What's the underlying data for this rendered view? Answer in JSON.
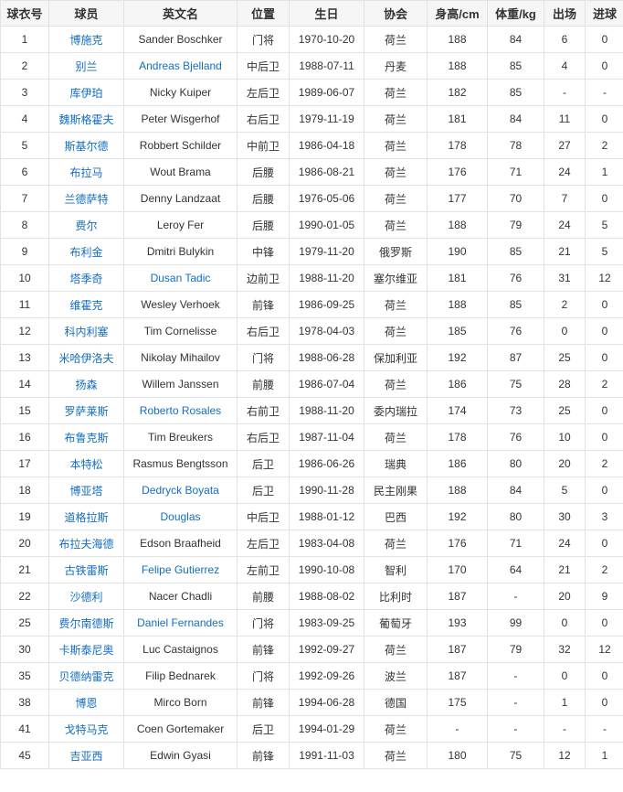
{
  "colors": {
    "link": "#136ec2",
    "text": "#333333",
    "header_bg": "#f6f6f6",
    "border": "#e2e2e2"
  },
  "headers": [
    "球衣号",
    "球员",
    "英文名",
    "位置",
    "生日",
    "协会",
    "身高/cm",
    "体重/kg",
    "出场",
    "进球"
  ],
  "rows": [
    {
      "no": "1",
      "cn": "博施克",
      "en": "Sander Boschker",
      "en_link": false,
      "pos": "门将",
      "birth": "1970-10-20",
      "assoc": "荷兰",
      "height": "188",
      "weight": "84",
      "apps": "6",
      "goals": "0"
    },
    {
      "no": "2",
      "cn": "别兰",
      "en": "Andreas Bjelland",
      "en_link": true,
      "pos": "中后卫",
      "birth": "1988-07-11",
      "assoc": "丹麦",
      "height": "188",
      "weight": "85",
      "apps": "4",
      "goals": "0"
    },
    {
      "no": "3",
      "cn": "库伊珀",
      "en": "Nicky Kuiper",
      "en_link": false,
      "pos": "左后卫",
      "birth": "1989-06-07",
      "assoc": "荷兰",
      "height": "182",
      "weight": "85",
      "apps": "-",
      "goals": "-"
    },
    {
      "no": "4",
      "cn": "魏斯格霍夫",
      "en": "Peter Wisgerhof",
      "en_link": false,
      "pos": "右后卫",
      "birth": "1979-11-19",
      "assoc": "荷兰",
      "height": "181",
      "weight": "84",
      "apps": "11",
      "goals": "0"
    },
    {
      "no": "5",
      "cn": "斯基尔德",
      "en": "Robbert Schilder",
      "en_link": false,
      "pos": "中前卫",
      "birth": "1986-04-18",
      "assoc": "荷兰",
      "height": "178",
      "weight": "78",
      "apps": "27",
      "goals": "2"
    },
    {
      "no": "6",
      "cn": "布拉马",
      "en": "Wout Brama",
      "en_link": false,
      "pos": "后腰",
      "birth": "1986-08-21",
      "assoc": "荷兰",
      "height": "176",
      "weight": "71",
      "apps": "24",
      "goals": "1"
    },
    {
      "no": "7",
      "cn": "兰德萨特",
      "en": "Denny Landzaat",
      "en_link": false,
      "pos": "后腰",
      "birth": "1976-05-06",
      "assoc": "荷兰",
      "height": "177",
      "weight": "70",
      "apps": "7",
      "goals": "0"
    },
    {
      "no": "8",
      "cn": "费尔",
      "en": "Leroy Fer",
      "en_link": false,
      "pos": "后腰",
      "birth": "1990-01-05",
      "assoc": "荷兰",
      "height": "188",
      "weight": "79",
      "apps": "24",
      "goals": "5"
    },
    {
      "no": "9",
      "cn": "布利金",
      "en": "Dmitri Bulykin",
      "en_link": false,
      "pos": "中锋",
      "birth": "1979-11-20",
      "assoc": "俄罗斯",
      "height": "190",
      "weight": "85",
      "apps": "21",
      "goals": "5"
    },
    {
      "no": "10",
      "cn": "塔季奇",
      "en": "Dusan Tadic",
      "en_link": true,
      "pos": "边前卫",
      "birth": "1988-11-20",
      "assoc": "塞尔维亚",
      "height": "181",
      "weight": "76",
      "apps": "31",
      "goals": "12"
    },
    {
      "no": "11",
      "cn": "维霍克",
      "en": "Wesley Verhoek",
      "en_link": false,
      "pos": "前锋",
      "birth": "1986-09-25",
      "assoc": "荷兰",
      "height": "188",
      "weight": "85",
      "apps": "2",
      "goals": "0"
    },
    {
      "no": "12",
      "cn": "科内利塞",
      "en": "Tim Cornelisse",
      "en_link": false,
      "pos": "右后卫",
      "birth": "1978-04-03",
      "assoc": "荷兰",
      "height": "185",
      "weight": "76",
      "apps": "0",
      "goals": "0"
    },
    {
      "no": "13",
      "cn": "米哈伊洛夫",
      "en": "Nikolay Mihailov",
      "en_link": false,
      "pos": "门将",
      "birth": "1988-06-28",
      "assoc": "保加利亚",
      "height": "192",
      "weight": "87",
      "apps": "25",
      "goals": "0"
    },
    {
      "no": "14",
      "cn": "扬森",
      "en": "Willem Janssen",
      "en_link": false,
      "pos": "前腰",
      "birth": "1986-07-04",
      "assoc": "荷兰",
      "height": "186",
      "weight": "75",
      "apps": "28",
      "goals": "2"
    },
    {
      "no": "15",
      "cn": "罗萨莱斯",
      "en": "Roberto Rosales",
      "en_link": true,
      "pos": "右前卫",
      "birth": "1988-11-20",
      "assoc": "委内瑞拉",
      "height": "174",
      "weight": "73",
      "apps": "25",
      "goals": "0"
    },
    {
      "no": "16",
      "cn": "布鲁克斯",
      "en": "Tim Breukers",
      "en_link": false,
      "pos": "右后卫",
      "birth": "1987-11-04",
      "assoc": "荷兰",
      "height": "178",
      "weight": "76",
      "apps": "10",
      "goals": "0"
    },
    {
      "no": "17",
      "cn": "本特松",
      "en": "Rasmus Bengtsson",
      "en_link": false,
      "pos": "后卫",
      "birth": "1986-06-26",
      "assoc": "瑞典",
      "height": "186",
      "weight": "80",
      "apps": "20",
      "goals": "2"
    },
    {
      "no": "18",
      "cn": "博亚塔",
      "en": "Dedryck Boyata",
      "en_link": true,
      "pos": "后卫",
      "birth": "1990-11-28",
      "assoc": "民主刚果",
      "height": "188",
      "weight": "84",
      "apps": "5",
      "goals": "0"
    },
    {
      "no": "19",
      "cn": "道格拉斯",
      "en": "Douglas",
      "en_link": true,
      "pos": "中后卫",
      "birth": "1988-01-12",
      "assoc": "巴西",
      "height": "192",
      "weight": "80",
      "apps": "30",
      "goals": "3"
    },
    {
      "no": "20",
      "cn": "布拉夫海德",
      "en": "Edson Braafheid",
      "en_link": false,
      "pos": "左后卫",
      "birth": "1983-04-08",
      "assoc": "荷兰",
      "height": "176",
      "weight": "71",
      "apps": "24",
      "goals": "0"
    },
    {
      "no": "21",
      "cn": "古铁雷斯",
      "en": "Felipe Gutierrez",
      "en_link": true,
      "pos": "左前卫",
      "birth": "1990-10-08",
      "assoc": "智利",
      "height": "170",
      "weight": "64",
      "apps": "21",
      "goals": "2"
    },
    {
      "no": "22",
      "cn": "沙德利",
      "en": "Nacer Chadli",
      "en_link": false,
      "pos": "前腰",
      "birth": "1988-08-02",
      "assoc": "比利时",
      "height": "187",
      "weight": "-",
      "apps": "20",
      "goals": "9"
    },
    {
      "no": "25",
      "cn": "费尔南德斯",
      "en": "Daniel Fernandes",
      "en_link": true,
      "pos": "门将",
      "birth": "1983-09-25",
      "assoc": "葡萄牙",
      "height": "193",
      "weight": "99",
      "apps": "0",
      "goals": "0"
    },
    {
      "no": "30",
      "cn": "卡斯泰尼奥",
      "en": "Luc Castaignos",
      "en_link": false,
      "pos": "前锋",
      "birth": "1992-09-27",
      "assoc": "荷兰",
      "height": "187",
      "weight": "79",
      "apps": "32",
      "goals": "12"
    },
    {
      "no": "35",
      "cn": "贝德纳雷克",
      "en": "Filip Bednarek",
      "en_link": false,
      "pos": "门将",
      "birth": "1992-09-26",
      "assoc": "波兰",
      "height": "187",
      "weight": "-",
      "apps": "0",
      "goals": "0"
    },
    {
      "no": "38",
      "cn": "博恩",
      "en": "Mirco Born",
      "en_link": false,
      "pos": "前锋",
      "birth": "1994-06-28",
      "assoc": "德国",
      "height": "175",
      "weight": "-",
      "apps": "1",
      "goals": "0"
    },
    {
      "no": "41",
      "cn": "戈特马克",
      "en": "Coen Gortemaker",
      "en_link": false,
      "pos": "后卫",
      "birth": "1994-01-29",
      "assoc": "荷兰",
      "height": "-",
      "weight": "-",
      "apps": "-",
      "goals": "-"
    },
    {
      "no": "45",
      "cn": "吉亚西",
      "en": "Edwin Gyasi",
      "en_link": false,
      "pos": "前锋",
      "birth": "1991-11-03",
      "assoc": "荷兰",
      "height": "180",
      "weight": "75",
      "apps": "12",
      "goals": "1"
    }
  ]
}
